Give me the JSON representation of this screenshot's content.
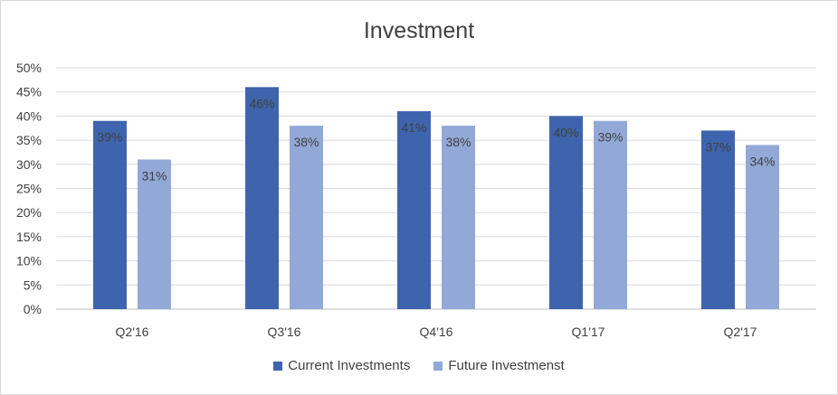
{
  "chart_data": {
    "type": "bar",
    "title": "Investment",
    "categories": [
      "Q2'16",
      "Q3'16",
      "Q4'16",
      "Q1'17",
      "Q2'17"
    ],
    "series": [
      {
        "name": "Current Investments",
        "values": [
          39,
          46,
          41,
          40,
          37
        ],
        "labels": [
          "39%",
          "46%",
          "41%",
          "40%",
          "37%"
        ],
        "color": "#3e64ad"
      },
      {
        "name": "Future Investmenst",
        "values": [
          31,
          38,
          38,
          39,
          34
        ],
        "labels": [
          "31%",
          "38%",
          "38%",
          "39%",
          "34%"
        ],
        "color": "#92a9d8"
      }
    ],
    "ylim": [
      0,
      50
    ],
    "yticks": [
      "0%",
      "5%",
      "10%",
      "15%",
      "20%",
      "25%",
      "30%",
      "35%",
      "40%",
      "45%",
      "50%"
    ],
    "grid": true,
    "legend_position": "bottom"
  }
}
